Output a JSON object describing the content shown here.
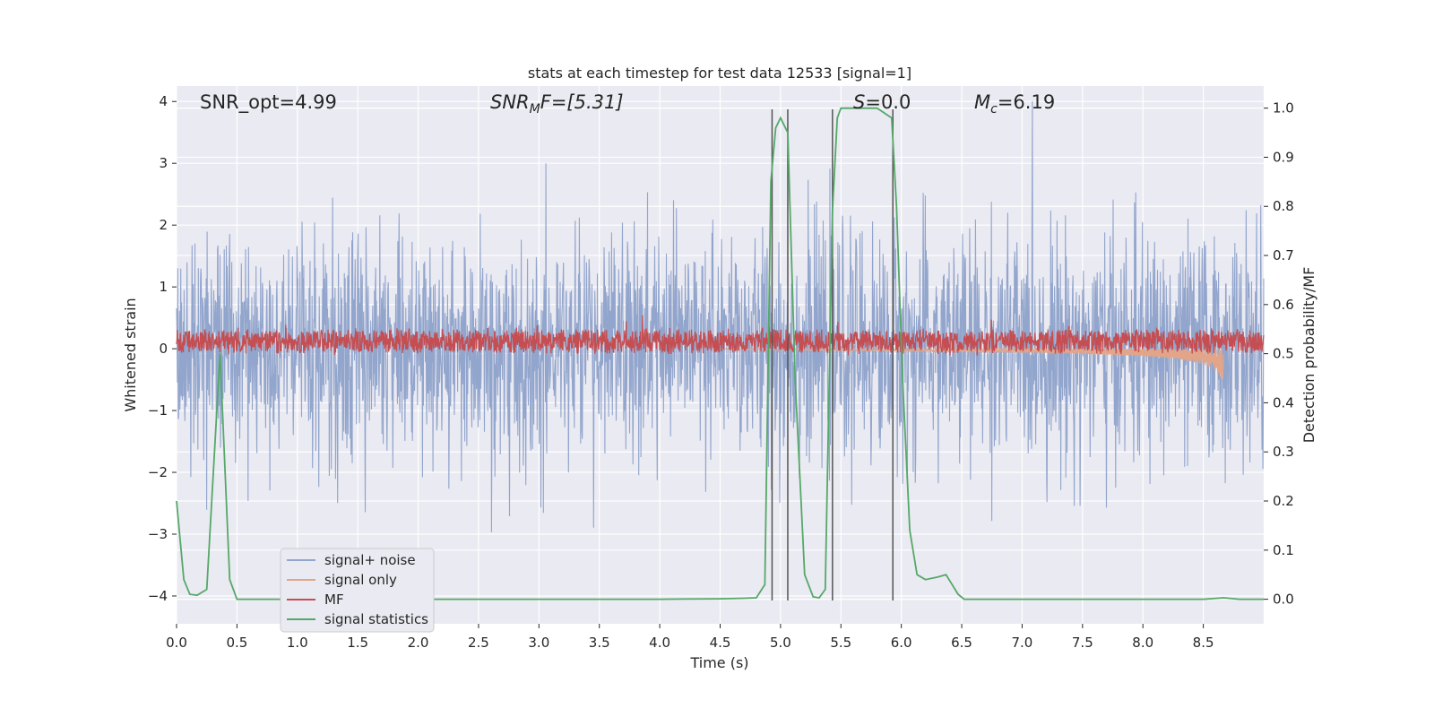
{
  "chart_data": {
    "type": "line",
    "title": "stats at each timestep for test data 12533 [signal=1]",
    "xlabel": "Time (s)",
    "ylabel_left": "Whitened strain",
    "ylabel_right": "Detection probability/MF",
    "xlim": [
      0,
      9.0
    ],
    "ylim_left": [
      -4.45,
      4.25
    ],
    "ylim_right": [
      -0.05,
      1.045
    ],
    "x_ticks": [
      "0.0",
      "0.5",
      "1.0",
      "1.5",
      "2.0",
      "2.5",
      "3.0",
      "3.5",
      "4.0",
      "4.5",
      "5.0",
      "5.5",
      "6.0",
      "6.5",
      "7.0",
      "7.5",
      "8.0",
      "8.5"
    ],
    "y_ticks_left": [
      "4",
      "3",
      "2",
      "1",
      "0",
      "−1",
      "−2",
      "−3",
      "−4"
    ],
    "y_ticks_right": [
      "1.0",
      "0.9",
      "0.8",
      "0.7",
      "0.6",
      "0.5",
      "0.4",
      "0.3",
      "0.2",
      "0.1",
      "0.0"
    ],
    "annotations": {
      "snr_opt": "SNR_opt=4.99",
      "snr_mf_sym": "SNR",
      "snr_mf_sub": "M",
      "snr_mf_rest": "F=[5.31]",
      "s_sym": "S",
      "s_rest": "=0.0",
      "mc_sym": "M",
      "mc_sub": "c",
      "mc_rest": "=6.19"
    },
    "legend": [
      "signal+ noise",
      "signal only",
      "MF",
      "signal statistics"
    ],
    "colors": {
      "signal_noise": "#92a5cc",
      "signal_only": "#e3a58a",
      "mf": "#c44e52",
      "signal_stats": "#55a868",
      "vlines": "#555555",
      "background": "#eaeaf2",
      "grid": "#ffffff"
    },
    "noise_envelope": {
      "x": [
        0,
        1,
        2,
        3,
        4,
        5,
        6,
        7,
        8,
        9
      ],
      "upper": [
        2.7,
        2.8,
        2.9,
        2.8,
        2.8,
        2.9,
        2.8,
        2.9,
        2.9,
        2.8
      ],
      "lower": [
        -2.5,
        -2.6,
        -2.6,
        -2.8,
        -2.6,
        -2.6,
        -2.6,
        -2.7,
        -2.6,
        -2.6
      ]
    },
    "mf_band": {
      "center": 0.25,
      "amplitude": 0.22
    },
    "signal_only": {
      "x": [
        4.5,
        5.0,
        5.5,
        6.0,
        6.5,
        7.0,
        7.5,
        8.0,
        8.3,
        8.5,
        8.6,
        8.67
      ],
      "amplitude": [
        0.01,
        0.02,
        0.03,
        0.04,
        0.05,
        0.06,
        0.08,
        0.12,
        0.17,
        0.25,
        0.35,
        0.55
      ]
    },
    "vlines_x": [
      4.93,
      5.06,
      5.43,
      5.93
    ],
    "series": [
      {
        "name": "signal statistics",
        "axis": "right",
        "x": [
          0.0,
          0.06,
          0.11,
          0.17,
          0.25,
          0.36,
          0.44,
          0.5,
          0.6,
          1.0,
          2.0,
          3.0,
          4.0,
          4.5,
          4.7,
          4.8,
          4.87,
          4.92,
          4.96,
          5.0,
          5.06,
          5.12,
          5.2,
          5.27,
          5.32,
          5.37,
          5.43,
          5.47,
          5.5,
          5.6,
          5.8,
          5.92,
          5.96,
          6.01,
          6.07,
          6.13,
          6.2,
          6.3,
          6.37,
          6.42,
          6.47,
          6.52,
          6.6,
          7.0,
          8.0,
          8.5,
          8.67,
          8.8,
          9.0
        ],
        "y": [
          0.2,
          0.04,
          0.01,
          0.008,
          0.02,
          0.5,
          0.04,
          0.0,
          0.0,
          0.0,
          0.0,
          0.0,
          0.0,
          0.001,
          0.002,
          0.003,
          0.03,
          0.85,
          0.96,
          0.98,
          0.95,
          0.45,
          0.05,
          0.005,
          0.003,
          0.02,
          0.79,
          0.98,
          1.0,
          1.0,
          1.0,
          0.98,
          0.8,
          0.45,
          0.14,
          0.05,
          0.04,
          0.045,
          0.05,
          0.03,
          0.01,
          0.0,
          0.0,
          0.0,
          0.0,
          0.0,
          0.003,
          0.0,
          0.0
        ]
      }
    ]
  }
}
